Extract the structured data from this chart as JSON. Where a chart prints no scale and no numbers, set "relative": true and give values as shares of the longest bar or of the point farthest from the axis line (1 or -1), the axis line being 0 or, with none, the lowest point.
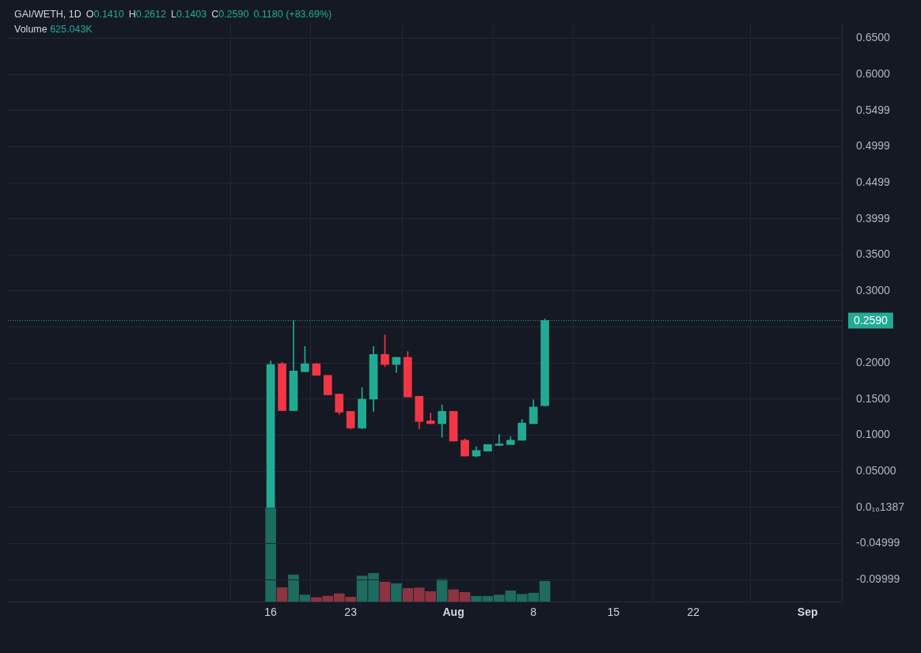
{
  "chart_data": [
    {
      "type": "candlestick",
      "title": "GAI/WETH, 1D",
      "annotations": [
        "O0.1410",
        "H0.2612",
        "L0.1403",
        "C0.2590",
        "0.1180 (+83.69%)"
      ],
      "x": [
        "--07-16",
        "--07-17",
        "--07-18",
        "--07-19",
        "--07-20",
        "--07-21",
        "--07-22",
        "--07-23",
        "--07-24",
        "--07-25",
        "--07-26",
        "--07-27",
        "--07-28",
        "--07-29",
        "--07-30",
        "--07-31",
        "--08-01",
        "--08-02",
        "--08-03",
        "--08-04",
        "--08-05",
        "--08-06",
        "--08-07",
        "--08-08",
        "--08-09"
      ],
      "ohlc": [
        [
          0.0,
          0.203,
          0.0,
          0.198
        ],
        [
          0.199,
          0.201,
          0.134,
          0.134
        ],
        [
          0.134,
          0.259,
          0.134,
          0.189
        ],
        [
          0.188,
          0.223,
          0.188,
          0.199
        ],
        [
          0.199,
          0.2,
          0.183,
          0.183
        ],
        [
          0.183,
          0.183,
          0.156,
          0.156
        ],
        [
          0.157,
          0.157,
          0.129,
          0.132
        ],
        [
          0.133,
          0.133,
          0.109,
          0.11
        ],
        [
          0.11,
          0.166,
          0.109,
          0.15
        ],
        [
          0.15,
          0.223,
          0.133,
          0.212
        ],
        [
          0.212,
          0.239,
          0.195,
          0.198
        ],
        [
          0.198,
          0.208,
          0.187,
          0.208
        ],
        [
          0.208,
          0.216,
          0.153,
          0.153
        ],
        [
          0.154,
          0.154,
          0.109,
          0.119
        ],
        [
          0.12,
          0.131,
          0.116,
          0.116
        ],
        [
          0.116,
          0.142,
          0.097,
          0.133
        ],
        [
          0.133,
          0.133,
          0.092,
          0.092
        ],
        [
          0.093,
          0.095,
          0.071,
          0.071
        ],
        [
          0.071,
          0.084,
          0.07,
          0.079
        ],
        [
          0.078,
          0.087,
          0.078,
          0.087
        ],
        [
          0.086,
          0.101,
          0.086,
          0.088
        ],
        [
          0.087,
          0.098,
          0.087,
          0.093
        ],
        [
          0.093,
          0.122,
          0.093,
          0.117
        ],
        [
          0.116,
          0.149,
          0.116,
          0.139
        ],
        [
          0.141,
          0.2612,
          0.1403,
          0.259
        ]
      ],
      "colors": [
        "#22ab94",
        "#f23645",
        "#22ab94",
        "#22ab94",
        "#f23645",
        "#f23645",
        "#f23645",
        "#f23645",
        "#22ab94",
        "#22ab94",
        "#f23645",
        "#22ab94",
        "#f23645",
        "#f23645",
        "#f23645",
        "#22ab94",
        "#f23645",
        "#f23645",
        "#22ab94",
        "#22ab94",
        "#22ab94",
        "#22ab94",
        "#22ab94",
        "#22ab94",
        "#22ab94"
      ],
      "xlim": [
        "--06-23",
        "--09-04"
      ],
      "xticks": [
        {
          "value": "--07-16",
          "label": "16"
        },
        {
          "value": "--07-23",
          "label": "23"
        },
        {
          "value": "--08-01",
          "label": "Aug"
        },
        {
          "value": "--08-08",
          "label": "8"
        },
        {
          "value": "--08-15",
          "label": "15"
        },
        {
          "value": "--08-22",
          "label": "22"
        },
        {
          "value": "--09-01",
          "label": "Sep"
        }
      ],
      "ylim": [
        -0.1308,
        0.6703
      ],
      "yticks": [
        {
          "value": 0.65,
          "label": "0.6500"
        },
        {
          "value": 0.6,
          "label": "0.6000"
        },
        {
          "value": 0.5499,
          "label": "0.5499"
        },
        {
          "value": 0.4999,
          "label": "0.4999"
        },
        {
          "value": 0.4499,
          "label": "0.4499"
        },
        {
          "value": 0.3999,
          "label": "0.3999"
        },
        {
          "value": 0.35,
          "label": "0.3500"
        },
        {
          "value": 0.3,
          "label": "0.3000"
        },
        {
          "value": 0.25,
          "label": null
        },
        {
          "value": 0.2,
          "label": "0.2000"
        },
        {
          "value": 0.15,
          "label": "0.1500"
        },
        {
          "value": 0.1,
          "label": "0.1000"
        },
        {
          "value": 0.05,
          "label": "0.05000"
        },
        {
          "value": 1.387e-17,
          "label": "0.0₁₆1387"
        },
        {
          "value": -0.04999,
          "label": "-0.04999"
        },
        {
          "value": -0.09999,
          "label": "-0.09999"
        }
      ],
      "ref_lines": [
        {
          "axis": "y",
          "value": 0.259,
          "label": "0.2590",
          "color": "#22ab94",
          "line_style": "dotted"
        }
      ],
      "grid": true,
      "legend": false
    },
    {
      "type": "bar",
      "relative": true,
      "annotations": [
        "Volume 625.043K"
      ],
      "x": [
        "--07-16",
        "--07-17",
        "--07-18",
        "--07-19",
        "--07-20",
        "--07-21",
        "--07-22",
        "--07-23",
        "--07-24",
        "--07-25",
        "--07-26",
        "--07-27",
        "--07-28",
        "--07-29",
        "--07-30",
        "--07-31",
        "--08-01",
        "--08-02",
        "--08-03",
        "--08-04",
        "--08-05",
        "--08-06",
        "--08-07",
        "--08-08",
        "--08-09"
      ],
      "xlim": [
        "--06-23",
        "--09-04"
      ],
      "values": [
        1,
        0.15,
        0.287,
        0.071,
        0.043,
        0.059,
        0.085,
        0.048,
        0.275,
        0.303,
        0.21,
        0.193,
        0.142,
        0.147,
        0.108,
        0.24,
        0.128,
        0.099,
        0.057,
        0.057,
        0.071,
        0.116,
        0.079,
        0.091,
        0.218
      ],
      "colors": [
        "#1e6b5f",
        "#8c3441",
        "#1e6b5f",
        "#1e6b5f",
        "#8c3441",
        "#8c3441",
        "#8c3441",
        "#8c3441",
        "#1e6b5f",
        "#1e6b5f",
        "#8c3441",
        "#1e6b5f",
        "#8c3441",
        "#8c3441",
        "#8c3441",
        "#1e6b5f",
        "#8c3441",
        "#8c3441",
        "#1e6b5f",
        "#1e6b5f",
        "#1e6b5f",
        "#1e6b5f",
        "#1e6b5f",
        "#1e6b5f",
        "#1e6b5f"
      ],
      "legend": false
    }
  ]
}
